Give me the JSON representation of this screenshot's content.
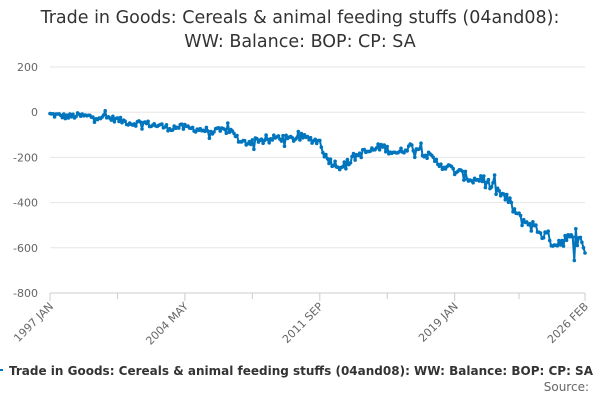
{
  "chart_data": {
    "type": "line",
    "title_lines": [
      "Trade in Goods: Cereals & animal feeding stuffs (04and08):",
      "WW: Balance: BOP: CP: SA"
    ],
    "xlabel": "",
    "ylabel": "",
    "ylim": [
      -800,
      200
    ],
    "yticks": [
      200,
      0,
      -200,
      -400,
      -600,
      -800
    ],
    "ytick_labels": [
      "200",
      "0",
      "-200",
      "-400",
      "-600",
      "-800"
    ],
    "x_range_months": [
      0,
      349
    ],
    "x_tick_labels": [
      {
        "label": "1997 JAN",
        "month_index": 0
      },
      {
        "label": "2004 MAY",
        "month_index": 88
      },
      {
        "label": "2011 SEP",
        "month_index": 176
      },
      {
        "label": "2019 JAN",
        "month_index": 264
      },
      {
        "label": "2026 FEB",
        "month_index": 349
      }
    ],
    "x_minor_tick_months": [
      44,
      132,
      220,
      306
    ],
    "grid": "horizontal",
    "legend_position": "bottom",
    "series": [
      {
        "name": "Trade in Goods: Cereals & animal feeding stuffs (04and08): WW: Balance: BOP: CP: SA",
        "color": "#0075bd",
        "anchors": [
          [
            0,
            -10
          ],
          [
            6,
            -15
          ],
          [
            12,
            -20
          ],
          [
            18,
            -15
          ],
          [
            24,
            -18
          ],
          [
            30,
            -20
          ],
          [
            36,
            -22
          ],
          [
            42,
            -30
          ],
          [
            48,
            -40
          ],
          [
            54,
            -50
          ],
          [
            60,
            -45
          ],
          [
            66,
            -55
          ],
          [
            72,
            -60
          ],
          [
            78,
            -70
          ],
          [
            84,
            -65
          ],
          [
            90,
            -70
          ],
          [
            96,
            -75
          ],
          [
            102,
            -80
          ],
          [
            108,
            -85
          ],
          [
            114,
            -80
          ],
          [
            120,
            -85
          ],
          [
            124,
            -140
          ],
          [
            130,
            -130
          ],
          [
            136,
            -120
          ],
          [
            142,
            -130
          ],
          [
            148,
            -110
          ],
          [
            156,
            -120
          ],
          [
            164,
            -110
          ],
          [
            170,
            -120
          ],
          [
            176,
            -130
          ],
          [
            180,
            -200
          ],
          [
            186,
            -230
          ],
          [
            192,
            -240
          ],
          [
            198,
            -200
          ],
          [
            204,
            -180
          ],
          [
            210,
            -170
          ],
          [
            216,
            -150
          ],
          [
            222,
            -170
          ],
          [
            228,
            -180
          ],
          [
            234,
            -150
          ],
          [
            240,
            -160
          ],
          [
            246,
            -190
          ],
          [
            252,
            -220
          ],
          [
            258,
            -240
          ],
          [
            264,
            -260
          ],
          [
            270,
            -280
          ],
          [
            276,
            -300
          ],
          [
            282,
            -290
          ],
          [
            288,
            -330
          ],
          [
            294,
            -360
          ],
          [
            300,
            -400
          ],
          [
            306,
            -470
          ],
          [
            312,
            -490
          ],
          [
            318,
            -520
          ],
          [
            324,
            -550
          ],
          [
            330,
            -580
          ],
          [
            336,
            -560
          ],
          [
            342,
            -570
          ],
          [
            349,
            -580
          ]
        ]
      }
    ]
  },
  "source_label": "Source:"
}
